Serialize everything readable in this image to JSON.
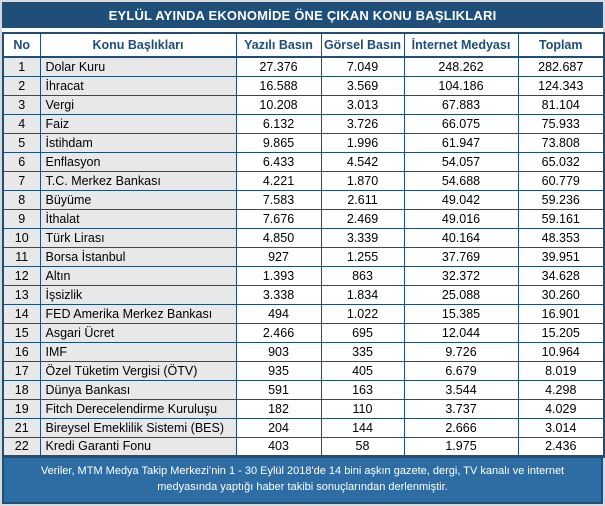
{
  "title": "EYLÜL AYINDA EKONOMİDE ÖNE ÇIKAN KONU BAŞLIKLARI",
  "footer_note": "Veriler, MTM Medya Takip Merkezi’nin 1 - 30 Eylül 2018'de 14 bini aşkın gazete, dergi, TV kanalı ve internet medyasında yaptığı haber takibi sonuçlarından derlenmiştir.",
  "colors": {
    "title_bg": "#1F4E79",
    "border": "#1F4E79",
    "footer_bg": "#2E6DA4",
    "label_column_bg": "#E8E8E8",
    "header_text": "#1F4E79"
  },
  "chart_data": {
    "type": "table",
    "title": "EYLÜL AYINDA EKONOMİDE ÖNE ÇIKAN KONU BAŞLIKLARI",
    "columns": [
      "No",
      "Konu Başlıkları",
      "Yazılı Basın",
      "Görsel Basın",
      "İnternet Medyası",
      "Toplam"
    ],
    "rows": [
      [
        "1",
        "Dolar Kuru",
        "27.376",
        "7.049",
        "248.262",
        "282.687"
      ],
      [
        "2",
        "İhracat",
        "16.588",
        "3.569",
        "104.186",
        "124.343"
      ],
      [
        "3",
        "Vergi",
        "10.208",
        "3.013",
        "67.883",
        "81.104"
      ],
      [
        "4",
        "Faiz",
        "6.132",
        "3.726",
        "66.075",
        "75.933"
      ],
      [
        "5",
        "İstihdam",
        "9.865",
        "1.996",
        "61.947",
        "73.808"
      ],
      [
        "6",
        "Enflasyon",
        "6.433",
        "4.542",
        "54.057",
        "65.032"
      ],
      [
        "7",
        "T.C. Merkez Bankası",
        "4.221",
        "1.870",
        "54.688",
        "60.779"
      ],
      [
        "8",
        "Büyüme",
        "7.583",
        "2.611",
        "49.042",
        "59.236"
      ],
      [
        "9",
        "İthalat",
        "7.676",
        "2.469",
        "49.016",
        "59.161"
      ],
      [
        "10",
        "Türk Lirası",
        "4.850",
        "3.339",
        "40.164",
        "48.353"
      ],
      [
        "11",
        "Borsa İstanbul",
        "927",
        "1.255",
        "37.769",
        "39.951"
      ],
      [
        "12",
        "Altın",
        "1.393",
        "863",
        "32.372",
        "34.628"
      ],
      [
        "13",
        "İşsizlik",
        "3.338",
        "1.834",
        "25.088",
        "30.260"
      ],
      [
        "14",
        "FED Amerika Merkez Bankası",
        "494",
        "1.022",
        "15.385",
        "16.901"
      ],
      [
        "15",
        "Asgari Ücret",
        "2.466",
        "695",
        "12.044",
        "15.205"
      ],
      [
        "16",
        "IMF",
        "903",
        "335",
        "9.726",
        "10.964"
      ],
      [
        "17",
        "Özel Tüketim Vergisi (ÖTV)",
        "935",
        "405",
        "6.679",
        "8.019"
      ],
      [
        "18",
        "Dünya Bankası",
        "591",
        "163",
        "3.544",
        "4.298"
      ],
      [
        "19",
        "Fitch Derecelendirme Kuruluşu",
        "182",
        "110",
        "3.737",
        "4.029"
      ],
      [
        "21",
        "Bireysel Emeklilik Sistemi (BES)",
        "204",
        "144",
        "2.666",
        "3.014"
      ],
      [
        "22",
        "Kredi Garanti Fonu",
        "403",
        "58",
        "1.975",
        "2.436"
      ]
    ]
  }
}
